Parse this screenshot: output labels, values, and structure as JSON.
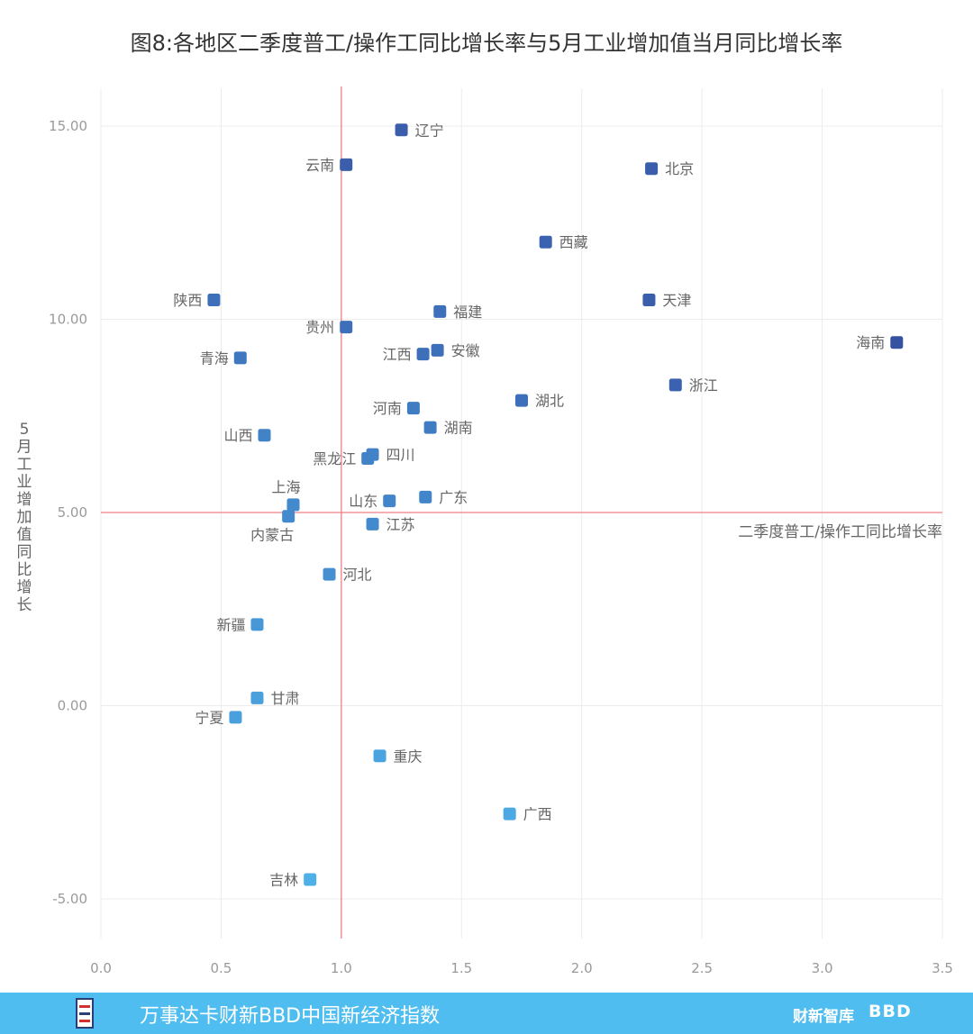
{
  "title": "图8:各地区二季度普工/操作工同比增长率与5月工业增加值当月同比增长率",
  "footer": {
    "text": "万事达卡财新BBD中国新经济指数",
    "brand1": "财新智库",
    "brand2": "BBD"
  },
  "chart_data": {
    "type": "scatter",
    "title": "图8:各地区二季度普工/操作工同比增长率与5月工业增加值当月同比增长率",
    "xlabel": "二季度普工/操作工同比增长率",
    "ylabel": "5月工业增加值同比增长",
    "xlim": [
      0,
      3.5
    ],
    "ylim": [
      -6,
      16
    ],
    "x_ticks": [
      "0.0",
      "0.5",
      "1.0",
      "1.5",
      "2.0",
      "2.5",
      "3.0",
      "3.5"
    ],
    "y_ticks": [
      "-5.00",
      "0.00",
      "5.00",
      "10.00",
      "15.00"
    ],
    "reference_lines": {
      "x": 1.0,
      "y": 5.0
    },
    "grid": true,
    "points": [
      {
        "name": "辽宁",
        "x": 1.25,
        "y": 14.9,
        "color": "#3a5dac",
        "label_pos": "right"
      },
      {
        "name": "云南",
        "x": 1.02,
        "y": 14.0,
        "color": "#3a5dac",
        "label_pos": "left"
      },
      {
        "name": "北京",
        "x": 2.29,
        "y": 13.9,
        "color": "#3a5dac",
        "label_pos": "right"
      },
      {
        "name": "西藏",
        "x": 1.85,
        "y": 12.0,
        "color": "#3a62b0",
        "label_pos": "right"
      },
      {
        "name": "陕西",
        "x": 0.47,
        "y": 10.5,
        "color": "#3e6fba",
        "label_pos": "left"
      },
      {
        "name": "天津",
        "x": 2.28,
        "y": 10.5,
        "color": "#3a5dac",
        "label_pos": "right"
      },
      {
        "name": "福建",
        "x": 1.41,
        "y": 10.2,
        "color": "#3e6fba",
        "label_pos": "right"
      },
      {
        "name": "贵州",
        "x": 1.02,
        "y": 9.8,
        "color": "#3e6fba",
        "label_pos": "left"
      },
      {
        "name": "海南",
        "x": 3.31,
        "y": 9.4,
        "color": "#34529f",
        "label_pos": "left"
      },
      {
        "name": "安徽",
        "x": 1.4,
        "y": 9.2,
        "color": "#3e6fba",
        "label_pos": "right"
      },
      {
        "name": "江西",
        "x": 1.34,
        "y": 9.1,
        "color": "#3e6fba",
        "label_pos": "left"
      },
      {
        "name": "青海",
        "x": 0.58,
        "y": 9.0,
        "color": "#3f78c0",
        "label_pos": "left"
      },
      {
        "name": "浙江",
        "x": 2.39,
        "y": 8.3,
        "color": "#3a62b0",
        "label_pos": "right"
      },
      {
        "name": "湖北",
        "x": 1.75,
        "y": 7.9,
        "color": "#3e6fba",
        "label_pos": "right"
      },
      {
        "name": "河南",
        "x": 1.3,
        "y": 7.7,
        "color": "#3f7cc2",
        "label_pos": "left"
      },
      {
        "name": "湖南",
        "x": 1.37,
        "y": 7.2,
        "color": "#3f7cc2",
        "label_pos": "right"
      },
      {
        "name": "山西",
        "x": 0.68,
        "y": 7.0,
        "color": "#4283c8",
        "label_pos": "left"
      },
      {
        "name": "四川",
        "x": 1.13,
        "y": 6.5,
        "color": "#4283c8",
        "label_pos": "right"
      },
      {
        "name": "黑龙江",
        "x": 1.11,
        "y": 6.4,
        "color": "#4283c8",
        "label_pos": "left"
      },
      {
        "name": "广东",
        "x": 1.35,
        "y": 5.4,
        "color": "#4285ca",
        "label_pos": "right"
      },
      {
        "name": "山东",
        "x": 1.2,
        "y": 5.3,
        "color": "#4285ca",
        "label_pos": "left"
      },
      {
        "name": "上海",
        "x": 0.8,
        "y": 5.2,
        "color": "#4389cd",
        "label_pos": "top"
      },
      {
        "name": "内蒙古",
        "x": 0.78,
        "y": 4.9,
        "color": "#4389cd",
        "label_pos": "bottom"
      },
      {
        "name": "江苏",
        "x": 1.13,
        "y": 4.7,
        "color": "#4389cd",
        "label_pos": "right"
      },
      {
        "name": "河北",
        "x": 0.95,
        "y": 3.4,
        "color": "#4690d2",
        "label_pos": "right"
      },
      {
        "name": "新疆",
        "x": 0.65,
        "y": 2.1,
        "color": "#4898d8",
        "label_pos": "left"
      },
      {
        "name": "甘肃",
        "x": 0.65,
        "y": 0.2,
        "color": "#4aa0dc",
        "label_pos": "right"
      },
      {
        "name": "宁夏",
        "x": 0.56,
        "y": -0.3,
        "color": "#4aa0dc",
        "label_pos": "left"
      },
      {
        "name": "重庆",
        "x": 1.16,
        "y": -1.3,
        "color": "#4ba4e0",
        "label_pos": "right"
      },
      {
        "name": "广西",
        "x": 1.7,
        "y": -2.8,
        "color": "#4ca9e3",
        "label_pos": "right"
      },
      {
        "name": "吉林",
        "x": 0.87,
        "y": -4.5,
        "color": "#4eb0e6",
        "label_pos": "left"
      }
    ]
  }
}
